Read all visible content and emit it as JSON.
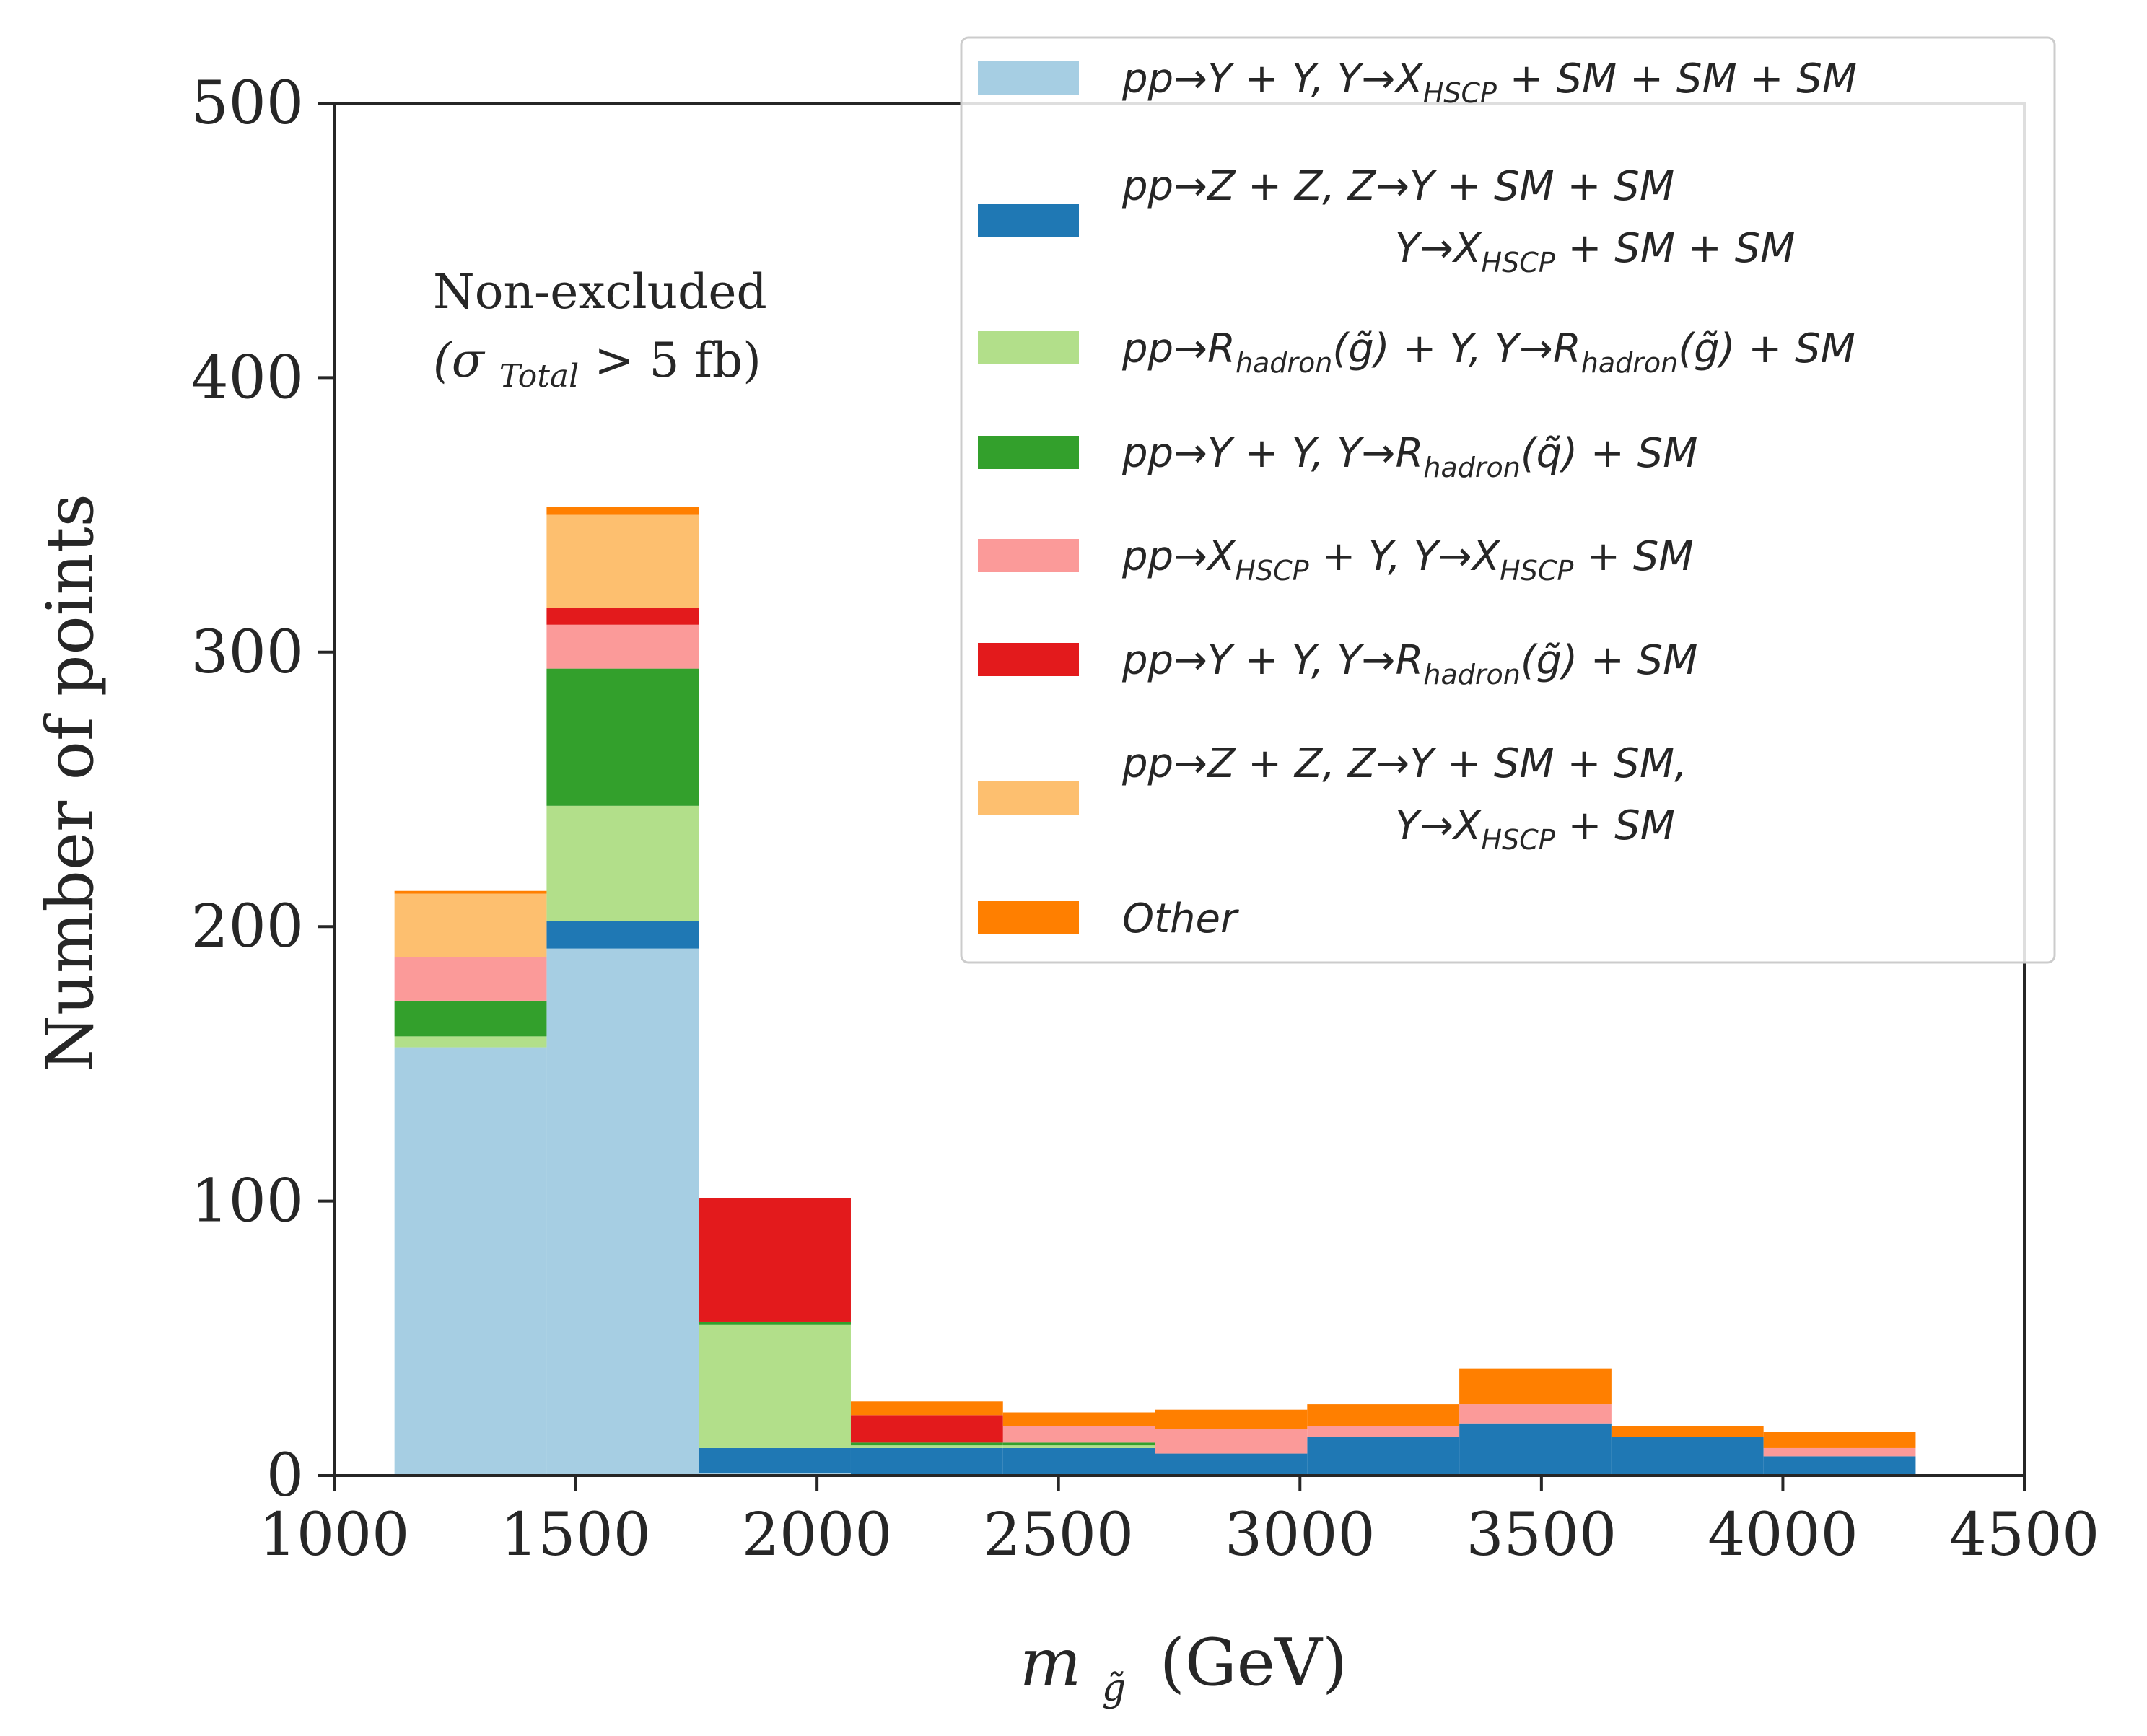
{
  "chart_data": {
    "type": "bar",
    "stacked": true,
    "xlabel": "m",
    "xlabel_sub": "g̃",
    "xlabel_unit": "(GeV)",
    "ylabel": "Number of points",
    "xlim": [
      1000,
      4500
    ],
    "ylim": [
      0,
      500
    ],
    "xticks": [
      "1000",
      "1500",
      "2000",
      "2500",
      "3000",
      "3500",
      "4000",
      "4500"
    ],
    "yticks": [
      "0",
      "100",
      "200",
      "300",
      "400",
      "500"
    ],
    "bin_edges": [
      1125,
      1440,
      1755,
      2070,
      2385,
      2700,
      3015,
      3330,
      3645,
      3960,
      4275
    ],
    "annotation": {
      "line1": "Non-excluded",
      "line2_open": "(σ",
      "line2_sub": "Total",
      "line2_close": " > 5 fb)"
    },
    "legend_position": "top-right",
    "series": [
      {
        "color": "#a6cee3",
        "legend_parts": [
          [
            [
              "pp→Y + Y,  Y→X",
              ""
            ],
            [
              "HSCP",
              "sub"
            ],
            [
              " + SM + SM + SM",
              ""
            ]
          ]
        ],
        "values": [
          156,
          192,
          1,
          0,
          0,
          0,
          0,
          0,
          0,
          0
        ]
      },
      {
        "color": "#1f78b4",
        "legend_parts": [
          [
            [
              "pp→Z + Z,  Z→Y + SM + SM",
              ""
            ]
          ],
          [
            [
              "Y→X",
              "indent"
            ],
            [
              "HSCP",
              "sub"
            ],
            [
              " + SM + SM",
              ""
            ]
          ]
        ],
        "values": [
          0,
          10,
          9,
          10,
          10,
          8,
          14,
          19,
          14,
          7
        ]
      },
      {
        "color": "#b2df8a",
        "legend_parts": [
          [
            [
              "pp→R",
              ""
            ],
            [
              "hadron",
              "sub"
            ],
            [
              "(g̃) + Y,  Y→R",
              ""
            ],
            [
              "hadron",
              "sub"
            ],
            [
              "(g̃) + SM",
              ""
            ]
          ]
        ],
        "values": [
          4,
          42,
          45,
          1,
          1,
          0,
          0,
          0,
          0,
          0
        ]
      },
      {
        "color": "#33a02c",
        "legend_parts": [
          [
            [
              "pp→Y + Y,  Y→R",
              ""
            ],
            [
              "hadron",
              "sub"
            ],
            [
              "(q̃) + SM",
              ""
            ]
          ]
        ],
        "values": [
          13,
          50,
          1,
          1,
          1,
          0,
          0,
          0,
          0,
          0
        ]
      },
      {
        "color": "#fb9a99",
        "legend_parts": [
          [
            [
              "pp→X",
              ""
            ],
            [
              "HSCP",
              "sub"
            ],
            [
              " + Y,  Y→X",
              ""
            ],
            [
              "HSCP",
              "sub"
            ],
            [
              " + SM",
              ""
            ]
          ]
        ],
        "values": [
          16,
          16,
          0,
          0,
          6,
          9,
          4,
          7,
          0,
          3
        ]
      },
      {
        "color": "#e31a1c",
        "legend_parts": [
          [
            [
              "pp→Y + Y,  Y→R",
              ""
            ],
            [
              "hadron",
              "sub"
            ],
            [
              "(g̃) + SM",
              ""
            ]
          ]
        ],
        "values": [
          0,
          6,
          45,
          10,
          0,
          0,
          0,
          0,
          0,
          0
        ]
      },
      {
        "color": "#fdbf6f",
        "legend_parts": [
          [
            [
              "pp→Z + Z,  Z→Y + SM + SM,",
              ""
            ]
          ],
          [
            [
              "Y→X",
              "indent"
            ],
            [
              "HSCP",
              "sub"
            ],
            [
              " + SM",
              ""
            ]
          ]
        ],
        "values": [
          23,
          34,
          0,
          0,
          0,
          0,
          0,
          0,
          0,
          0
        ]
      },
      {
        "color": "#ff7f00",
        "legend_parts": [
          [
            [
              "Other",
              ""
            ]
          ]
        ],
        "values": [
          1,
          3,
          0,
          5,
          5,
          7,
          8,
          13,
          4,
          6
        ]
      }
    ]
  }
}
